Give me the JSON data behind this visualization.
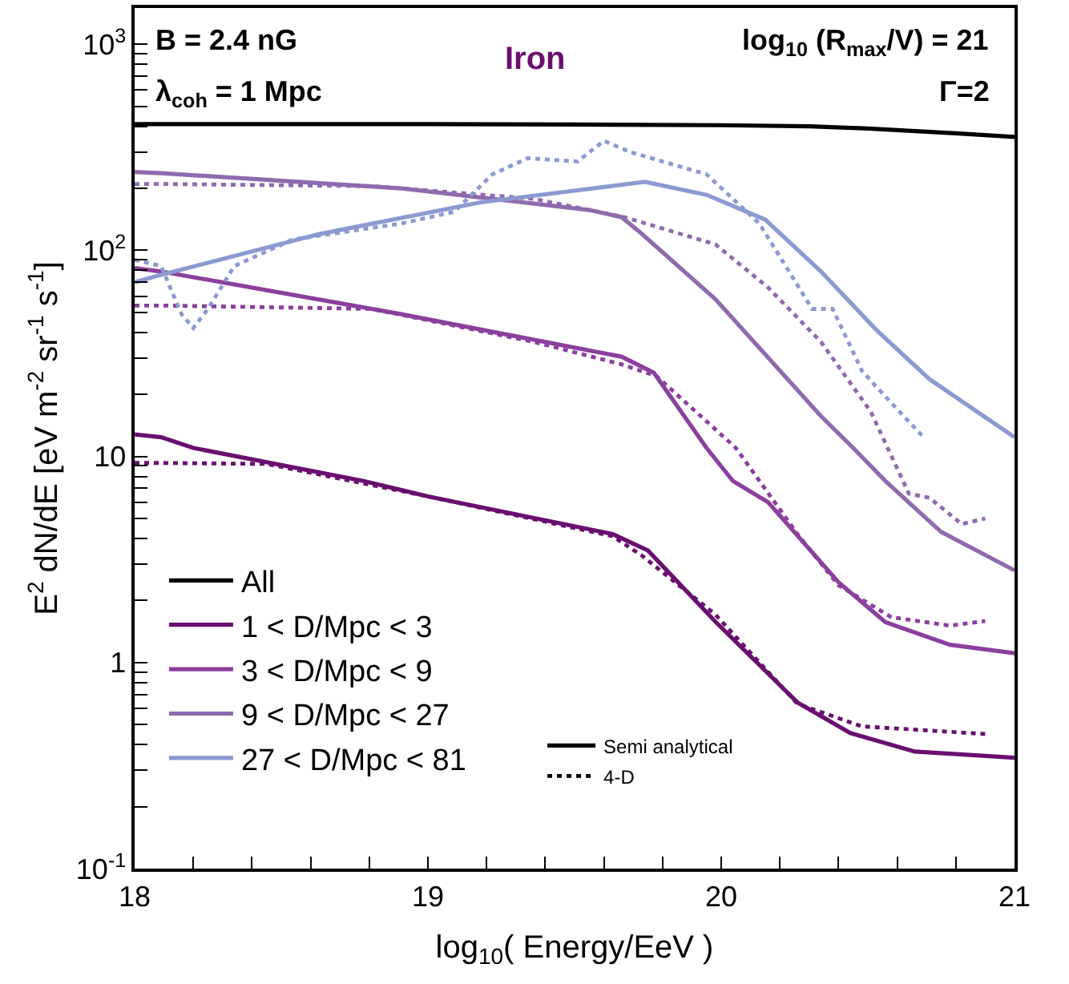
{
  "chart_data": {
    "type": "line",
    "xlabel": "log$_{10}$( Energy/EeV )",
    "ylabel": "E$^{2}$ dN/dE [eV m$^{-2}$ sr$^{-1}$ s$^{-1}$]",
    "annotations": [
      "B = 2.4 nG",
      "λ$_{coh}$ = 1 Mpc",
      "Iron",
      "log$_{10}$ (R$_{max}$/V) = 21",
      "Γ=2"
    ],
    "log": "y",
    "legend": "bottom left",
    "xlim": [
      18,
      21
    ],
    "ylim": [
      0.1,
      1500
    ],
    "xticks": [
      18,
      {
        "value": 18.2,
        "label": null
      },
      {
        "value": 18.4,
        "label": null
      },
      {
        "value": 18.6,
        "label": null
      },
      {
        "value": 18.8,
        "label": null
      },
      19,
      {
        "value": 19.2,
        "label": null
      },
      {
        "value": 19.4,
        "label": null
      },
      {
        "value": 19.6,
        "label": null
      },
      {
        "value": 19.8,
        "label": null
      },
      20,
      {
        "value": 20.2,
        "label": null
      },
      {
        "value": 20.4,
        "label": null
      },
      {
        "value": 20.6,
        "label": null
      },
      {
        "value": 20.8,
        "label": null
      },
      21
    ],
    "yticks": [
      {
        "value": 0.1,
        "label": "10$^{-1}$"
      },
      {
        "value": 0.2,
        "label": null
      },
      {
        "value": 0.3,
        "label": null
      },
      {
        "value": 0.4,
        "label": null
      },
      {
        "value": 0.5,
        "label": null
      },
      {
        "value": 0.6,
        "label": null
      },
      {
        "value": 0.7,
        "label": null
      },
      {
        "value": 0.8,
        "label": null
      },
      {
        "value": 0.9,
        "label": null
      },
      1,
      {
        "value": 2,
        "label": null
      },
      {
        "value": 3,
        "label": null
      },
      {
        "value": 4,
        "label": null
      },
      {
        "value": 5,
        "label": null
      },
      {
        "value": 6,
        "label": null
      },
      {
        "value": 7,
        "label": null
      },
      {
        "value": 8,
        "label": null
      },
      {
        "value": 9,
        "label": null
      },
      10,
      {
        "value": 20,
        "label": null
      },
      {
        "value": 30,
        "label": null
      },
      {
        "value": 40,
        "label": null
      },
      {
        "value": 50,
        "label": null
      },
      {
        "value": 60,
        "label": null
      },
      {
        "value": 70,
        "label": null
      },
      {
        "value": 80,
        "label": null
      },
      {
        "value": 90,
        "label": null
      },
      {
        "value": 100,
        "label": "10$^{2}$"
      },
      {
        "value": 200,
        "label": null
      },
      {
        "value": 300,
        "label": null
      },
      {
        "value": 400,
        "label": null
      },
      {
        "value": 500,
        "label": null
      },
      {
        "value": 600,
        "label": null
      },
      {
        "value": 700,
        "label": null
      },
      {
        "value": 800,
        "label": null
      },
      {
        "value": 900,
        "label": null
      },
      {
        "value": 1000,
        "label": "10$^{3}$"
      }
    ],
    "series": [
      {
        "name": "All",
        "color": "#000000",
        "line_style": "solid",
        "x": [
          18.0,
          18.5,
          19.0,
          19.5,
          20.0,
          20.3,
          20.5,
          20.8,
          21.0
        ],
        "values": [
          410,
          410,
          410,
          408,
          405,
          400,
          390,
          370,
          355
        ]
      },
      {
        "name": "1 < D/Mpc < 3",
        "color": "#6a0f70",
        "line_style": "solid",
        "x": [
          18.0,
          18.09,
          18.2,
          18.78,
          19.0,
          19.63,
          19.75,
          19.98,
          20.26,
          20.44,
          20.66,
          21.0
        ],
        "values": [
          12.8,
          12.4,
          11.0,
          7.6,
          6.4,
          4.2,
          3.5,
          1.58,
          0.64,
          0.455,
          0.37,
          0.345
        ]
      },
      {
        "color": "#6a0f70",
        "line_style": "dotted",
        "x": [
          18.0,
          18.09,
          18.45,
          19.0,
          19.63,
          19.73,
          19.98,
          20.26,
          20.48,
          20.9
        ],
        "values": [
          9.3,
          9.3,
          9.2,
          6.4,
          4.1,
          3.3,
          1.71,
          0.63,
          0.49,
          0.45
        ]
      },
      {
        "name": "3 < D/Mpc < 9",
        "color": "#8b3f9e",
        "line_style": "solid",
        "x": [
          18.0,
          18.09,
          18.91,
          19.66,
          19.77,
          19.95,
          20.04,
          20.16,
          20.4,
          20.56,
          20.78,
          21.0
        ],
        "values": [
          82,
          79,
          49,
          30.5,
          25.5,
          11,
          7.6,
          6.0,
          2.45,
          1.57,
          1.22,
          1.11
        ]
      },
      {
        "color": "#8b3f9e",
        "line_style": "dotted",
        "x": [
          18.0,
          18.09,
          18.81,
          19.36,
          19.66,
          19.78,
          20.05,
          20.26,
          20.4,
          20.58,
          20.78,
          20.9
        ],
        "values": [
          54,
          54,
          52,
          36,
          28,
          24.5,
          11,
          4.2,
          2.37,
          1.66,
          1.51,
          1.59
        ]
      },
      {
        "name": "9 < D/Mpc < 27",
        "color": "#8f6aad",
        "line_style": "solid",
        "x": [
          18.0,
          18.09,
          18.91,
          19.55,
          19.66,
          19.73,
          19.98,
          20.34,
          20.45,
          20.56,
          20.75,
          21.0
        ],
        "values": [
          240,
          237,
          200,
          157,
          145,
          120,
          58,
          15.7,
          11,
          7.6,
          4.3,
          2.8
        ]
      },
      {
        "color": "#8f6aad",
        "line_style": "dotted",
        "x": [
          18.0,
          18.09,
          18.81,
          19.36,
          19.67,
          19.98,
          20.16,
          20.34,
          20.51,
          20.64,
          20.71,
          20.82,
          20.9
        ],
        "values": [
          210,
          210,
          205,
          178,
          145,
          107,
          66,
          36,
          16.5,
          6.6,
          6.3,
          4.7,
          5.0
        ]
      },
      {
        "name": "27 < D/Mpc < 81",
        "color": "#8b9ad0",
        "line_style": "solid",
        "x": [
          18.0,
          18.09,
          18.63,
          19.18,
          19.74,
          19.95,
          20.15,
          20.34,
          20.53,
          20.71,
          21.0
        ],
        "values": [
          70,
          76,
          120,
          171,
          215,
          186,
          141,
          79,
          41,
          23.7,
          12.4
        ]
      },
      {
        "color": "#8b9ad0",
        "line_style": "dotted",
        "x": [
          18.0,
          18.09,
          18.16,
          18.2,
          18.25,
          18.34,
          18.54,
          18.91,
          19.09,
          19.22,
          19.34,
          19.51,
          19.6,
          19.69,
          19.95,
          20.13,
          20.31,
          20.38,
          20.48,
          20.56,
          20.69
        ],
        "values": [
          90,
          84,
          49,
          42,
          52,
          84,
          113,
          135,
          154,
          234,
          280,
          270,
          340,
          300,
          234,
          135,
          52,
          52,
          26,
          19.5,
          12.4
        ]
      },
      {
        "name": "Semi analytical",
        "color": "#000000",
        "line_style": "solid"
      },
      {
        "name": "4-D",
        "color": "#000000",
        "line_style": "dotted"
      }
    ]
  }
}
